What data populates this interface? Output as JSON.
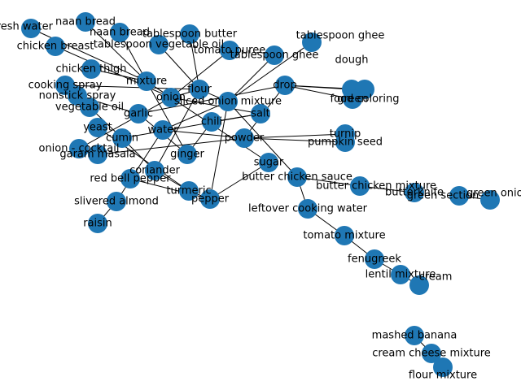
{
  "graph": {
    "node_color": "#1f77b4",
    "edge_color": "#000000",
    "nodes": [
      {
        "id": "naan_bread_1",
        "label": "naan bread"
      },
      {
        "id": "fresh_water",
        "label": "fresh water"
      },
      {
        "id": "chicken_breast",
        "label": "chicken breast"
      },
      {
        "id": "naan_bread_2",
        "label": "naan bread"
      },
      {
        "id": "tablespoon_butter",
        "label": "tablespoon butter"
      },
      {
        "id": "tablespoon_vegetable_oil",
        "label": "tablespoon vegetable oil"
      },
      {
        "id": "tablespoon_ghee_1",
        "label": "tablespoon ghee"
      },
      {
        "id": "tablespoon_ghee_2",
        "label": "tablespoon ghee"
      },
      {
        "id": "tomato_puree",
        "label": "tomato puree"
      },
      {
        "id": "chicken_thigh",
        "label": "chicken thigh"
      },
      {
        "id": "dough",
        "label": "dough"
      },
      {
        "id": "cooking_spray",
        "label": "cooking spray"
      },
      {
        "id": "nonstick_spray",
        "label": "nonstick spray"
      },
      {
        "id": "vegetable_oil",
        "label": "vegetable oil"
      },
      {
        "id": "food_coloring",
        "label": "food coloring"
      },
      {
        "id": "green",
        "label": "green"
      },
      {
        "id": "yeast",
        "label": "yeast"
      },
      {
        "id": "onion_cocktail",
        "label": "onion - cocktail"
      },
      {
        "id": "turnip",
        "label": "turnip"
      },
      {
        "id": "pumpkin_seed",
        "label": "pumpkin seed"
      },
      {
        "id": "garam_masala",
        "label": "garam masala"
      },
      {
        "id": "red_bell_pepper",
        "label": "red bell pepper"
      },
      {
        "id": "butter_chicken_sauce",
        "label": "butter chicken sauce"
      },
      {
        "id": "butter_chicken_mixture",
        "label": "butter chicken mixture"
      },
      {
        "id": "butterknife",
        "label": "butterknife"
      },
      {
        "id": "green_section",
        "label": "green section"
      },
      {
        "id": "green_onion",
        "label": "green onion"
      },
      {
        "id": "slivered_almond",
        "label": "slivered almond"
      },
      {
        "id": "raisin",
        "label": "raisin"
      },
      {
        "id": "leftover_cooking_water",
        "label": "leftover cooking water"
      },
      {
        "id": "tomato_mixture",
        "label": "tomato mixture"
      },
      {
        "id": "fenugreek",
        "label": "fenugreek"
      },
      {
        "id": "lentil_mixture",
        "label": "lentil mixture"
      },
      {
        "id": "cream",
        "label": "cream"
      },
      {
        "id": "mashed_banana",
        "label": "mashed banana"
      },
      {
        "id": "cream_cheese_mixture",
        "label": "cream cheese mixture"
      },
      {
        "id": "flour_mixture",
        "label": "flour mixture"
      },
      {
        "id": "hub_1",
        "label": "mixture"
      },
      {
        "id": "hub_2",
        "label": "onion"
      },
      {
        "id": "hub_3",
        "label": "flour"
      },
      {
        "id": "hub_4",
        "label": "sliced onion mixture"
      },
      {
        "id": "hub_5",
        "label": "water"
      },
      {
        "id": "hub_6",
        "label": "powder"
      },
      {
        "id": "hub_7",
        "label": "drop"
      },
      {
        "id": "hub_8",
        "label": "garlic"
      },
      {
        "id": "hub_9",
        "label": "ginger"
      },
      {
        "id": "hub_10",
        "label": "chili"
      },
      {
        "id": "hub_11",
        "label": "salt"
      },
      {
        "id": "hub_12",
        "label": "cumin"
      },
      {
        "id": "hub_13",
        "label": "coriander"
      },
      {
        "id": "hub_14",
        "label": "turmeric"
      },
      {
        "id": "hub_15",
        "label": "pepper"
      },
      {
        "id": "hub_16",
        "label": "sugar"
      }
    ],
    "edges": [
      [
        "naan_bread_1",
        "hub_1"
      ],
      [
        "fresh_water",
        "hub_1"
      ],
      [
        "chicken_breast",
        "hub_2"
      ],
      [
        "chicken_thigh",
        "hub_1"
      ],
      [
        "tablespoon_butter",
        "hub_3"
      ],
      [
        "tablespoon_ghee_1",
        "hub_4"
      ],
      [
        "tomato_puree",
        "hub_2"
      ],
      [
        "dough",
        "hub_7"
      ],
      [
        "food_coloring",
        "hub_7"
      ],
      [
        "green",
        "hub_7"
      ],
      [
        "turnip",
        "hub_6"
      ],
      [
        "pumpkin_seed",
        "hub_6"
      ],
      [
        "onion_cocktail",
        "hub_2"
      ],
      [
        "garam_masala",
        "hub_6"
      ],
      [
        "red_bell_pepper",
        "hub_15"
      ],
      [
        "slivered_almond",
        "hub_5"
      ],
      [
        "raisin",
        "slivered_almond"
      ],
      [
        "butter_chicken_sauce",
        "hub_4"
      ],
      [
        "butter_chicken_sauce",
        "butter_chicken_mixture"
      ],
      [
        "butter_chicken_mixture",
        "butterknife"
      ],
      [
        "green_section",
        "green_onion"
      ],
      [
        "butter_chicken_sauce",
        "leftover_cooking_water"
      ],
      [
        "leftover_cooking_water",
        "tomato_mixture"
      ],
      [
        "tomato_mixture",
        "fenugreek"
      ],
      [
        "fenugreek",
        "lentil_mixture"
      ],
      [
        "lentil_mixture",
        "cream"
      ],
      [
        "mashed_banana",
        "cream_cheese_mixture"
      ],
      [
        "cream_cheese_mixture",
        "flour_mixture"
      ],
      [
        "hub_1",
        "hub_2"
      ],
      [
        "hub_2",
        "hub_3"
      ],
      [
        "hub_3",
        "hub_4"
      ],
      [
        "hub_4",
        "hub_5"
      ],
      [
        "hub_5",
        "hub_6"
      ],
      [
        "hub_6",
        "hub_7"
      ],
      [
        "hub_7",
        "hub_8"
      ],
      [
        "hub_8",
        "hub_9"
      ],
      [
        "hub_9",
        "hub_10"
      ],
      [
        "hub_10",
        "hub_11"
      ],
      [
        "hub_11",
        "hub_12"
      ],
      [
        "hub_12",
        "hub_13"
      ],
      [
        "hub_13",
        "hub_14"
      ],
      [
        "hub_14",
        "hub_15"
      ],
      [
        "hub_15",
        "hub_16"
      ],
      [
        "hub_16",
        "hub_1"
      ],
      [
        "hub_1",
        "hub_9"
      ],
      [
        "hub_2",
        "hub_11"
      ],
      [
        "hub_3",
        "hub_13"
      ],
      [
        "hub_4",
        "hub_15"
      ],
      [
        "cooking_spray",
        "hub_3"
      ],
      [
        "nonstick_spray",
        "hub_8"
      ],
      [
        "vegetable_oil",
        "hub_12"
      ],
      [
        "yeast",
        "hub_14"
      ],
      [
        "naan_bread_2",
        "hub_1"
      ],
      [
        "tablespoon_vegetable_oil",
        "hub_3"
      ],
      [
        "tablespoon_ghee_2",
        "hub_4"
      ]
    ]
  }
}
